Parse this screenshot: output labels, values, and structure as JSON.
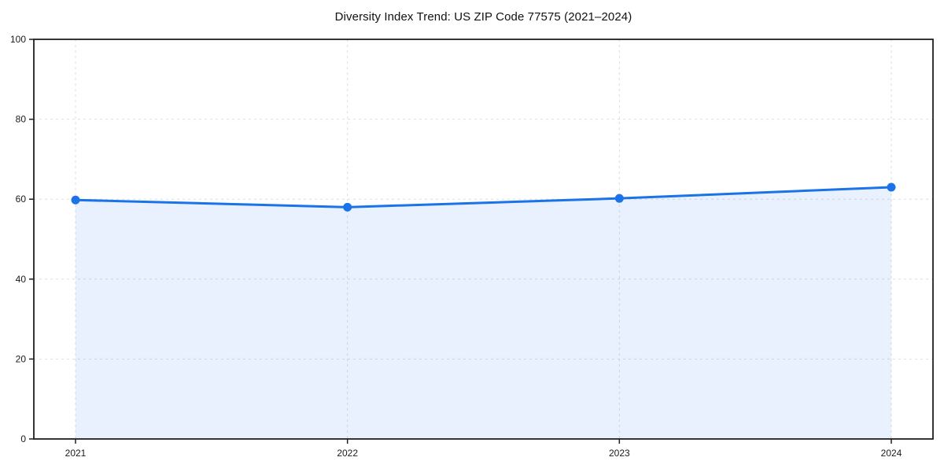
{
  "chart_data": {
    "type": "area",
    "title": "Diversity Index Trend: US ZIP Code 77575 (2021–2024)",
    "categories": [
      "2021",
      "2022",
      "2023",
      "2024"
    ],
    "values": [
      59.8,
      58.0,
      60.2,
      63.0
    ],
    "xlabel": "",
    "ylabel": "",
    "ylim": [
      0,
      100
    ],
    "yticks": [
      0,
      20,
      40,
      60,
      80,
      100
    ],
    "grid": true,
    "grid_style": "dashed",
    "legend": "none",
    "marker": "circle",
    "fill_opacity": 0.1,
    "colors": {
      "line": "#1a73e8",
      "fill": "#e8f0fd",
      "grid": "#dedede",
      "axis": "#1f1f1f",
      "text": "#1a1a1a",
      "background": "#ffffff"
    }
  }
}
